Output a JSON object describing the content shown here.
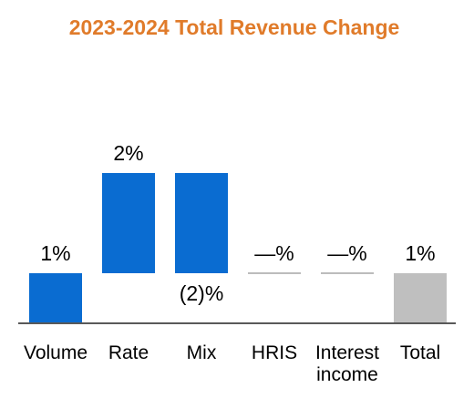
{
  "chart_data": {
    "type": "bar",
    "variant": "waterfall",
    "title": "2023-2024 Total Revenue Change",
    "categories": [
      [
        "Volume"
      ],
      [
        "Rate"
      ],
      [
        "Mix"
      ],
      [
        "HRIS"
      ],
      [
        "Interest",
        "income"
      ],
      [
        "Total"
      ]
    ],
    "values": [
      1,
      2,
      -2,
      0,
      0,
      1
    ],
    "value_labels": [
      "1%",
      "2%",
      "(2)%",
      "—%",
      "—%",
      "1%"
    ],
    "is_total": [
      false,
      false,
      false,
      false,
      false,
      true
    ],
    "ylim": [
      0,
      3
    ],
    "grid": false,
    "legend": "none"
  },
  "colors": {
    "title": "#E07B2A",
    "bar": "#0A6CD1",
    "total_bar": "#BFBFBF",
    "zero_line": "#A6A6A6",
    "axis": "#595959"
  }
}
